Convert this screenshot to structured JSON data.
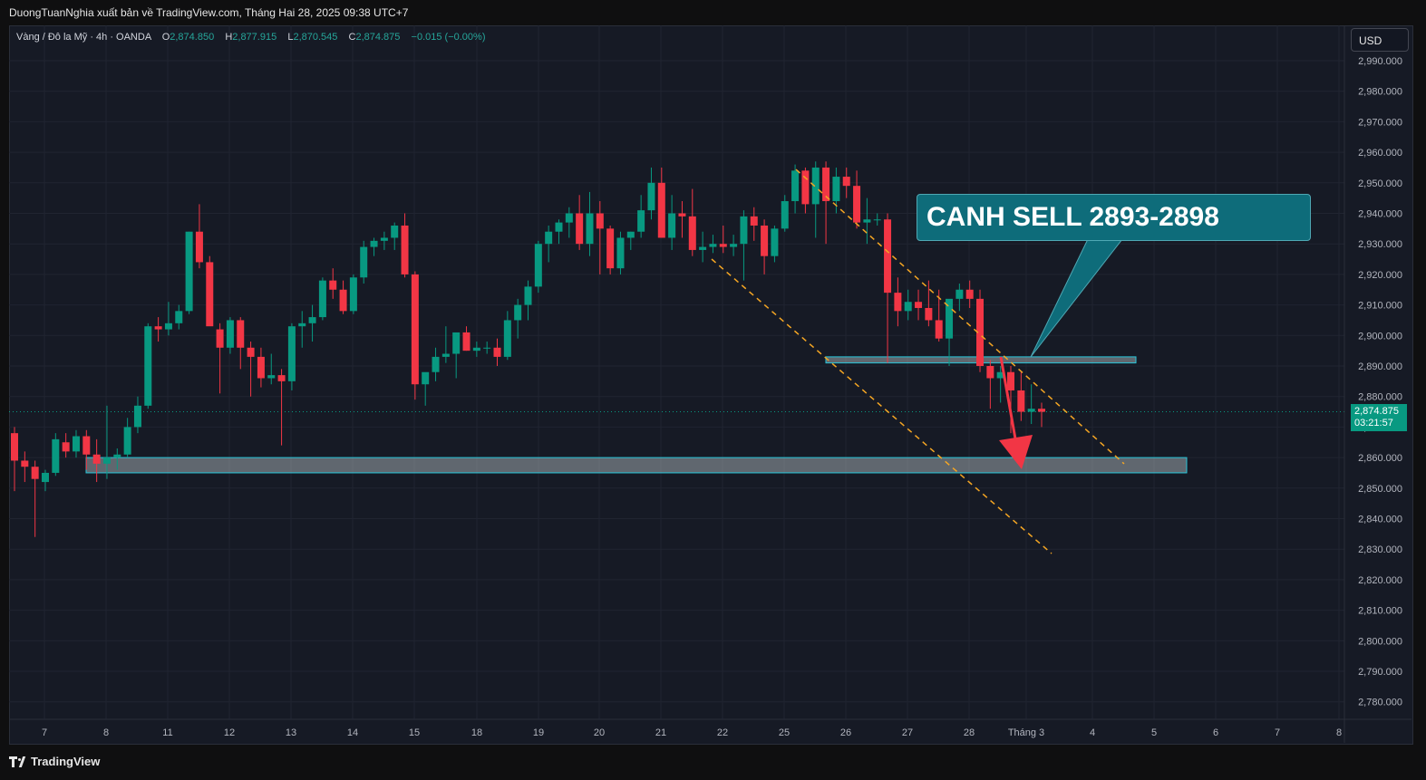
{
  "header": {
    "published_by": "DuongTuanNghia xuất bản về TradingView.com, Tháng Hai 28, 2025 09:38 UTC+7"
  },
  "legend": {
    "symbol": "Vàng / Đô la Mỹ · 4h · OANDA",
    "open_label": "O",
    "open": "2,874.850",
    "high_label": "H",
    "high": "2,877.915",
    "low_label": "L",
    "low": "2,870.545",
    "close_label": "C",
    "close": "2,874.875",
    "change": "−0.015 (−0.00%)"
  },
  "currency_button": "USD",
  "callout": {
    "text": "CANH SELL 2893-2898"
  },
  "last_price": {
    "price": "2,874.875",
    "countdown": "03:21:57"
  },
  "footer": {
    "brand": "TradingView"
  },
  "colors": {
    "up": "#089981",
    "down": "#f23645",
    "background": "#161a25",
    "channel": "#f5a623",
    "callout": "#0e6c7a",
    "arrow": "#f23645"
  },
  "chart_data": {
    "type": "candlestick",
    "y_ticks": [
      "2,990.000",
      "2,980.000",
      "2,970.000",
      "2,960.000",
      "2,950.000",
      "2,940.000",
      "2,930.000",
      "2,920.000",
      "2,910.000",
      "2,900.000",
      "2,890.000",
      "2,880.000",
      "2,870.000",
      "2,860.000",
      "2,850.000",
      "2,840.000",
      "2,830.000",
      "2,820.000",
      "2,810.000",
      "2,800.000",
      "2,790.000",
      "2,780.000"
    ],
    "ylim": [
      2775,
      2995
    ],
    "x_ticks": [
      "7",
      "8",
      "11",
      "12",
      "13",
      "14",
      "15",
      "18",
      "19",
      "20",
      "21",
      "22",
      "25",
      "26",
      "27",
      "28",
      "Tháng 3",
      "4",
      "5",
      "6",
      "7",
      "8"
    ],
    "candles": [
      [
        2868,
        2870,
        2849,
        2859
      ],
      [
        2859,
        2862,
        2852,
        2857
      ],
      [
        2857,
        2859,
        2834,
        2853
      ],
      [
        2852,
        2856,
        2849,
        2855
      ],
      [
        2855,
        2868,
        2854,
        2866
      ],
      [
        2865,
        2868,
        2860,
        2862
      ],
      [
        2862,
        2869,
        2860,
        2867
      ],
      [
        2867,
        2869,
        2856,
        2861
      ],
      [
        2861,
        2866,
        2852,
        2858
      ],
      [
        2858,
        2877,
        2853,
        2860
      ],
      [
        2860,
        2863,
        2856,
        2861
      ],
      [
        2861,
        2873,
        2860,
        2870
      ],
      [
        2870,
        2880,
        2868,
        2877
      ],
      [
        2877,
        2904,
        2876,
        2903
      ],
      [
        2903,
        2906,
        2898,
        2902
      ],
      [
        2902,
        2911,
        2900,
        2904
      ],
      [
        2904,
        2910,
        2902,
        2908
      ],
      [
        2908,
        2934,
        2907,
        2934
      ],
      [
        2934,
        2943,
        2922,
        2924
      ],
      [
        2924,
        2926,
        2904,
        2903
      ],
      [
        2902,
        2904,
        2881,
        2896
      ],
      [
        2896,
        2906,
        2894,
        2905
      ],
      [
        2905,
        2906,
        2889,
        2896
      ],
      [
        2896,
        2898,
        2880,
        2893
      ],
      [
        2893,
        2896,
        2883,
        2886
      ],
      [
        2886,
        2894,
        2884,
        2887
      ],
      [
        2887,
        2889,
        2864,
        2885
      ],
      [
        2885,
        2904,
        2882,
        2903
      ],
      [
        2903,
        2908,
        2896,
        2904
      ],
      [
        2904,
        2910,
        2898,
        2906
      ],
      [
        2906,
        2919,
        2905,
        2918
      ],
      [
        2918,
        2922,
        2912,
        2915
      ],
      [
        2915,
        2918,
        2907,
        2908
      ],
      [
        2908,
        2920,
        2907,
        2919
      ],
      [
        2919,
        2931,
        2917,
        2929
      ],
      [
        2929,
        2932,
        2926,
        2931
      ],
      [
        2931,
        2934,
        2928,
        2932
      ],
      [
        2932,
        2937,
        2928,
        2936
      ],
      [
        2936,
        2940,
        2919,
        2920
      ],
      [
        2920,
        2921,
        2879,
        2884
      ],
      [
        2884,
        2887,
        2877,
        2888
      ],
      [
        2888,
        2896,
        2885,
        2893
      ],
      [
        2893,
        2903,
        2891,
        2894
      ],
      [
        2894,
        2900,
        2886,
        2901
      ],
      [
        2901,
        2903,
        2895,
        2895
      ],
      [
        2895,
        2898,
        2893,
        2896
      ],
      [
        2896,
        2898,
        2894,
        2896
      ],
      [
        2896,
        2899,
        2890,
        2893
      ],
      [
        2893,
        2908,
        2892,
        2905
      ],
      [
        2905,
        2912,
        2899,
        2910
      ],
      [
        2910,
        2918,
        2905,
        2916
      ],
      [
        2916,
        2931,
        2914,
        2930
      ],
      [
        2930,
        2936,
        2924,
        2934
      ],
      [
        2934,
        2938,
        2930,
        2937
      ],
      [
        2937,
        2942,
        2932,
        2940
      ],
      [
        2940,
        2946,
        2928,
        2930
      ],
      [
        2930,
        2947,
        2926,
        2940
      ],
      [
        2940,
        2944,
        2920,
        2935
      ],
      [
        2935,
        2936,
        2920,
        2922
      ],
      [
        2922,
        2934,
        2920,
        2932
      ],
      [
        2932,
        2934,
        2928,
        2934
      ],
      [
        2934,
        2946,
        2932,
        2941
      ],
      [
        2941,
        2955,
        2938,
        2950
      ],
      [
        2950,
        2955,
        2932,
        2932
      ],
      [
        2932,
        2946,
        2928,
        2940
      ],
      [
        2940,
        2944,
        2932,
        2939
      ],
      [
        2939,
        2948,
        2926,
        2928
      ],
      [
        2928,
        2934,
        2924,
        2929
      ],
      [
        2929,
        2933,
        2927,
        2930
      ],
      [
        2930,
        2936,
        2927,
        2929
      ],
      [
        2929,
        2933,
        2926,
        2930
      ],
      [
        2930,
        2941,
        2918,
        2939
      ],
      [
        2939,
        2942,
        2931,
        2936
      ],
      [
        2936,
        2938,
        2920,
        2926
      ],
      [
        2926,
        2936,
        2924,
        2935
      ],
      [
        2935,
        2946,
        2934,
        2944
      ],
      [
        2944,
        2956,
        2940,
        2954
      ],
      [
        2954,
        2955,
        2940,
        2943
      ],
      [
        2943,
        2957,
        2932,
        2955
      ],
      [
        2955,
        2957,
        2930,
        2944
      ],
      [
        2944,
        2955,
        2940,
        2952
      ],
      [
        2952,
        2955,
        2945,
        2949
      ],
      [
        2949,
        2954,
        2935,
        2937
      ],
      [
        2937,
        2945,
        2930,
        2938
      ],
      [
        2938,
        2940,
        2936,
        2938
      ],
      [
        2938,
        2940,
        2891,
        2914
      ],
      [
        2914,
        2919,
        2903,
        2908
      ],
      [
        2908,
        2915,
        2905,
        2911
      ],
      [
        2911,
        2915,
        2905,
        2909
      ],
      [
        2909,
        2918,
        2903,
        2905
      ],
      [
        2905,
        2915,
        2898,
        2899
      ],
      [
        2899,
        2911,
        2890,
        2912
      ],
      [
        2912,
        2917,
        2908,
        2915
      ],
      [
        2915,
        2918,
        2909,
        2912
      ],
      [
        2912,
        2915,
        2888,
        2890
      ],
      [
        2890,
        2892,
        2876,
        2886
      ],
      [
        2886,
        2890,
        2878,
        2888
      ],
      [
        2888,
        2890,
        2868,
        2882
      ],
      [
        2882,
        2888,
        2872,
        2875
      ],
      [
        2875,
        2884,
        2871,
        2876
      ],
      [
        2876,
        2878,
        2870,
        2875
      ]
    ],
    "annotations": {
      "support_zone": [
        2855,
        2860
      ],
      "resistance_zone": [
        2891,
        2893
      ],
      "callout": "CANH SELL 2893-2898"
    }
  }
}
